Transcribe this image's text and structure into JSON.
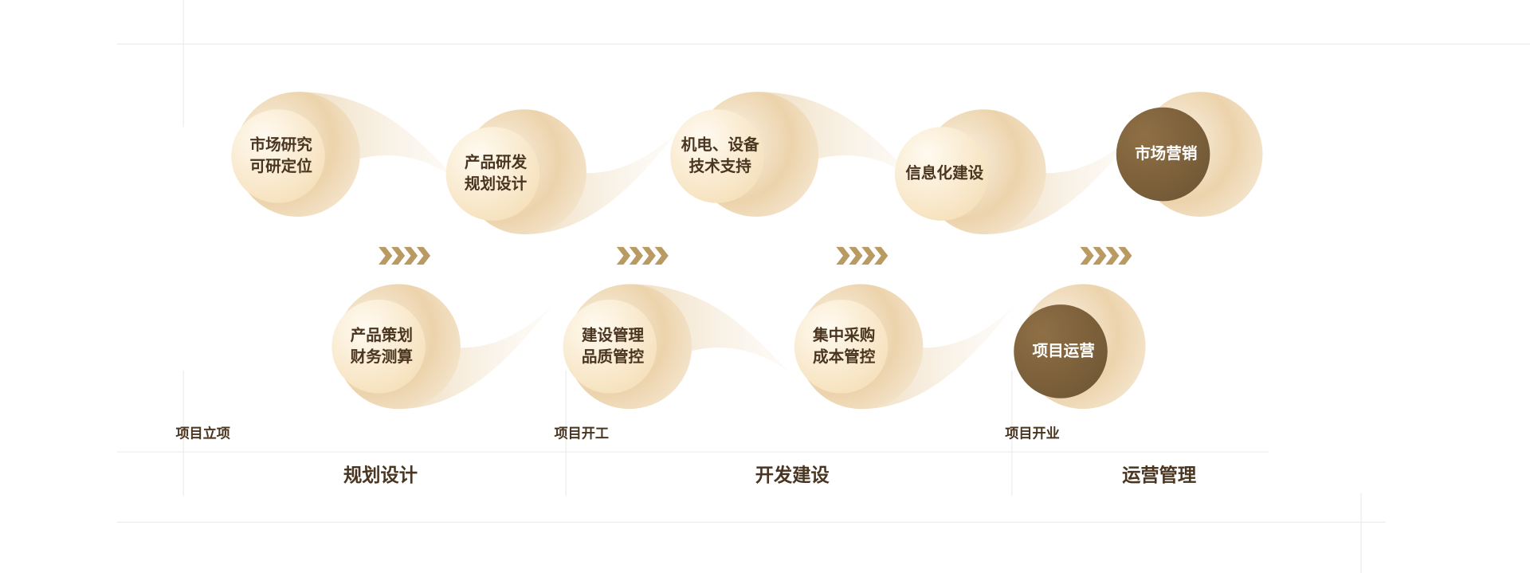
{
  "nodes": [
    {
      "lines": [
        "市场研究",
        "可研定位"
      ]
    },
    {
      "lines": [
        "产品研发",
        "规划设计"
      ]
    },
    {
      "lines": [
        "机电、设备",
        "技术支持"
      ]
    },
    {
      "lines": [
        "信息化建设"
      ]
    },
    {
      "lines": [
        "市场营销"
      ]
    },
    {
      "lines": [
        "产品策划",
        "财务测算"
      ]
    },
    {
      "lines": [
        "建设管理",
        "品质管控"
      ]
    },
    {
      "lines": [
        "集中采购",
        "成本管控"
      ]
    },
    {
      "lines": [
        "项目运营"
      ]
    }
  ],
  "milestones": [
    "项目立项",
    "项目开工",
    "项目开业"
  ],
  "phases": [
    "规划设计",
    "开发建设",
    "运营管理"
  ]
}
